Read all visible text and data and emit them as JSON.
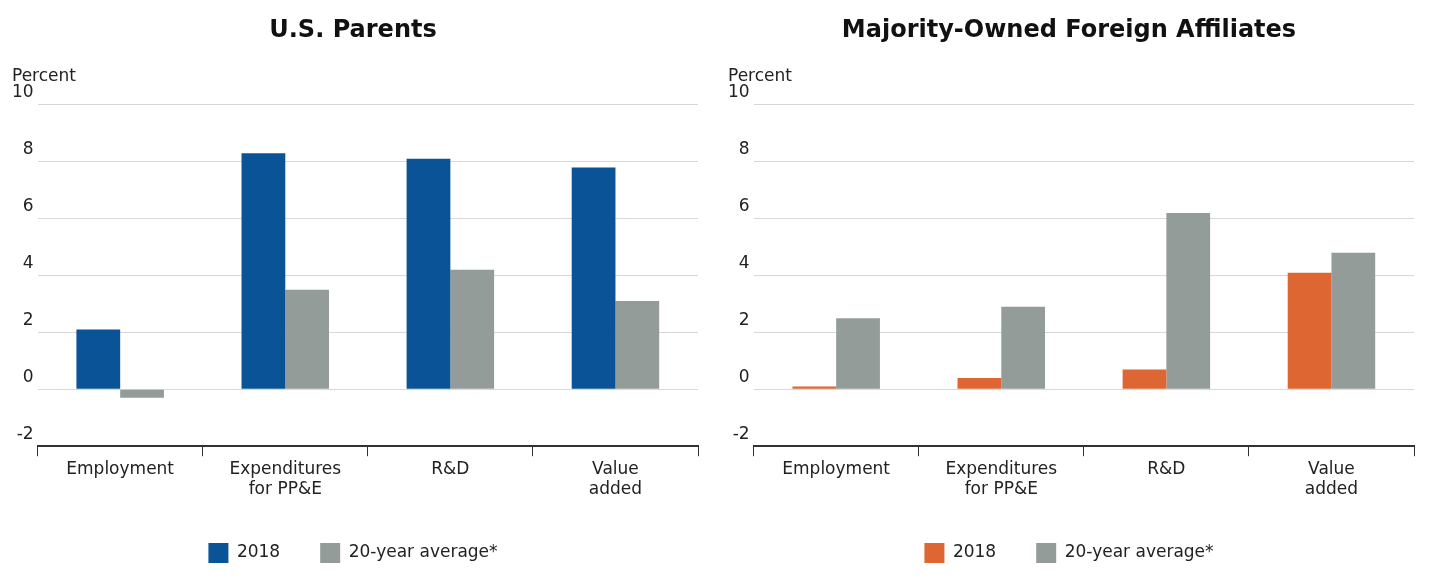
{
  "chart_data": [
    {
      "type": "bar",
      "title": "U.S. Parents",
      "ylabel": "Percent",
      "categories": [
        "Employment",
        "Expenditures for PP&E",
        "R&D",
        "Value added"
      ],
      "series": [
        {
          "name": "2018",
          "color": "#0a5396",
          "values": [
            2.1,
            8.3,
            8.1,
            7.8
          ]
        },
        {
          "name": "20-year average*",
          "color": "#949c9a",
          "values": [
            -0.3,
            3.5,
            4.2,
            3.1
          ]
        }
      ],
      "ylim": [
        -2,
        10
      ],
      "yticks": [
        -2,
        0,
        2,
        4,
        6,
        8,
        10
      ],
      "grid": "y",
      "legend": "bottom"
    },
    {
      "type": "bar",
      "title": "Majority-Owned Foreign Affiliates",
      "ylabel": "Percent",
      "categories": [
        "Employment",
        "Expenditures for PP&E",
        "R&D",
        "Value added"
      ],
      "series": [
        {
          "name": "2018",
          "color": "#dd6633",
          "values": [
            0.1,
            0.4,
            0.7,
            4.1
          ]
        },
        {
          "name": "20-year average*",
          "color": "#949c9a",
          "values": [
            2.5,
            2.9,
            6.2,
            4.8
          ]
        }
      ],
      "ylim": [
        -2,
        10
      ],
      "yticks": [
        -2,
        0,
        2,
        4,
        6,
        8,
        10
      ],
      "grid": "y",
      "legend": "bottom"
    }
  ]
}
